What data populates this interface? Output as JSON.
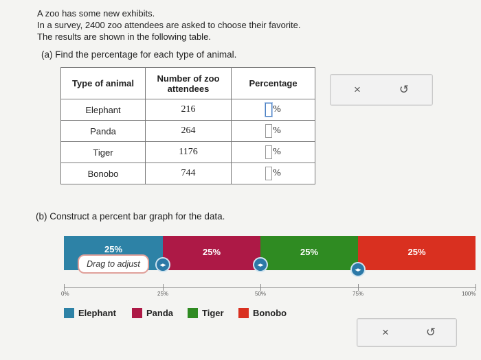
{
  "intro": {
    "line1": "A zoo has some new exhibits.",
    "line2": "In a survey, 2400 zoo attendees are asked to choose their favorite.",
    "line3": "The results are shown in the following table."
  },
  "part_a": {
    "prompt": "(a) Find the percentage for each type of animal."
  },
  "table": {
    "headers": [
      "Type of animal",
      "Number of zoo attendees",
      "Percentage"
    ],
    "rows": [
      {
        "animal": "Elephant",
        "count": "216",
        "percent_value": "",
        "percent_sign": "%"
      },
      {
        "animal": "Panda",
        "count": "264",
        "percent_value": "",
        "percent_sign": "%"
      },
      {
        "animal": "Tiger",
        "count": "1176",
        "percent_value": "",
        "percent_sign": "%"
      },
      {
        "animal": "Bonobo",
        "count": "744",
        "percent_value": "",
        "percent_sign": "%"
      }
    ]
  },
  "top_actions": {
    "clear_icon": "×",
    "reset_icon": "↺"
  },
  "part_b": {
    "prompt": "(b) Construct a percent bar graph for the data."
  },
  "bar_graph": {
    "segments": [
      {
        "name": "Elephant",
        "label": "25%",
        "color": "#2d82a6"
      },
      {
        "name": "Panda",
        "label": "25%",
        "color": "#ad1946"
      },
      {
        "name": "Tiger",
        "label": "25%",
        "color": "#2f8b22"
      },
      {
        "name": "Bonobo",
        "label": "25%",
        "color": "#d93020"
      }
    ],
    "tooltip": "Drag to adjust",
    "handle_icon": "◂▸",
    "ticks": [
      "0%",
      "25%",
      "50%",
      "75%",
      "100%"
    ]
  },
  "legend": [
    "Elephant",
    "Panda",
    "Tiger",
    "Bonobo"
  ],
  "bottom_actions": {
    "clear_icon": "×",
    "reset_icon": "↺"
  }
}
